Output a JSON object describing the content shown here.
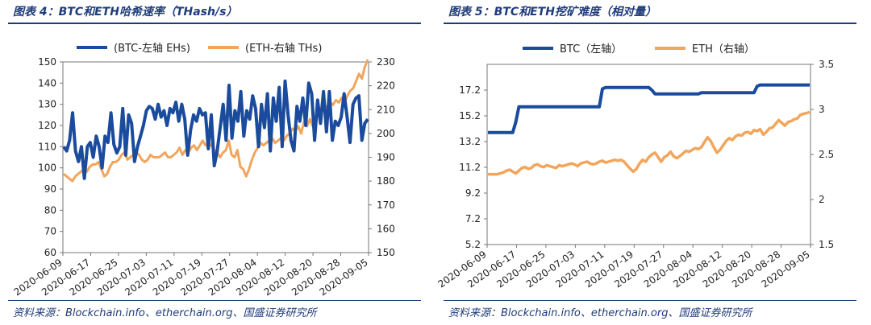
{
  "colors": {
    "btc": "#1a4b9c",
    "eth": "#f2a55c",
    "accent": "#1f3c7a"
  },
  "charts": [
    {
      "title": "图表 4：BTC和ETH哈希速率（THash/s）",
      "source": "资料来源：Blockchain.info、etherchain.org、国盛证券研究所",
      "chart_data": {
        "type": "line",
        "x_tick_labels": [
          "2020-06-09",
          "2020-06-17",
          "2020-06-25",
          "2020-07-03",
          "2020-07-11",
          "2020-07-19",
          "2020-07-27",
          "2020-08-04",
          "2020-08-12",
          "2020-08-20",
          "2020-08-28",
          "2020-09-05"
        ],
        "y_left": {
          "ylim": [
            60,
            150
          ],
          "ticks": [
            60,
            70,
            80,
            90,
            100,
            110,
            120,
            130,
            140,
            150
          ]
        },
        "y_right": {
          "ylim": [
            150,
            230
          ],
          "ticks": [
            150,
            160,
            170,
            180,
            190,
            200,
            210,
            220,
            230
          ]
        },
        "legend_position": "top",
        "series": [
          {
            "name": "(BTC-左轴 EHs)",
            "axis": "left",
            "color": "#1a4b9c",
            "values": [
              110,
              108,
              113,
              126,
              108,
              103,
              110,
              95,
              110,
              112,
              105,
              115,
              110,
              100,
              115,
              112,
              126,
              111,
              107,
              110,
              128,
              106,
              125,
              121,
              103,
              110,
              115,
              120,
              127,
              129,
              128,
              123,
              130,
              124,
              127,
              120,
              128,
              126,
              131,
              122,
              130,
              123,
              106,
              118,
              125,
              122,
              128,
              125,
              126,
              109,
              125,
              101,
              108,
              119,
              130,
              113,
              139,
              114,
              127,
              122,
              136,
              115,
              127,
              123,
              134,
              128,
              110,
              130,
              119,
              135,
              108,
              133,
              122,
              138,
              110,
              141,
              125,
              113,
              108,
              129,
              122,
              133,
              120,
              140,
              135,
              113,
              132,
              121,
              136,
              117,
              136,
              113,
              122,
              120,
              124,
              135,
              124,
              112,
              130,
              133,
              134,
              113,
              121,
              123
            ]
          },
          {
            "name": "(ETH-右轴 THs)",
            "axis": "right",
            "color": "#f2a55c",
            "values": [
              183,
              182,
              181,
              180,
              182,
              183,
              184,
              185,
              184,
              186,
              187,
              187,
              188,
              185,
              182,
              183,
              186,
              188,
              188,
              189,
              191,
              192,
              189,
              190,
              191,
              192,
              191,
              189,
              188,
              189,
              191,
              190,
              190,
              190,
              191,
              192,
              190,
              190,
              191,
              192,
              194,
              191,
              193,
              192,
              194,
              195,
              193,
              195,
              197,
              195,
              196,
              195,
              193,
              192,
              190,
              192,
              193,
              197,
              191,
              190,
              193,
              186,
              185,
              182,
              185,
              189,
              192,
              194,
              196,
              195,
              196,
              197,
              198,
              196,
              197,
              198,
              197,
              199,
              200,
              202,
              201,
              203,
              200,
              205,
              203,
              206,
              203,
              206,
              208,
              210,
              212,
              211,
              213,
              212,
              214,
              213,
              215,
              213,
              216,
              218,
              219,
              222,
              225,
              223,
              228,
              231
            ]
          }
        ]
      }
    },
    {
      "title": "图表 5：BTC和ETH挖矿难度（相对量）",
      "source": "资料来源：Blockchain.info、etherchain.org、国盛证券研究所",
      "chart_data": {
        "type": "line",
        "x_tick_labels": [
          "2020-06-09",
          "2020-06-17",
          "2020-06-25",
          "2020-07-03",
          "2020-07-11",
          "2020-07-19",
          "2020-07-27",
          "2020-08-04",
          "2020-08-12",
          "2020-08-20",
          "2020-08-28",
          "2020-09-05"
        ],
        "y_left": {
          "ylim": [
            5.2,
            19.2
          ],
          "ticks": [
            "5.2",
            "7.2",
            "9.2",
            "11.2",
            "13.2",
            "15.2",
            "17.2"
          ]
        },
        "y_right": {
          "ylim": [
            1.5,
            3.5
          ],
          "ticks": [
            "1.5",
            "2",
            "2.5",
            "3",
            "3.5"
          ]
        },
        "legend_position": "top",
        "series": [
          {
            "name": "BTC（左轴）",
            "axis": "left",
            "color": "#1a4b9c",
            "values": [
              13.9,
              13.9,
              13.9,
              13.9,
              13.9,
              13.9,
              13.9,
              13.9,
              13.9,
              14.7,
              15.9,
              15.9,
              15.9,
              15.9,
              15.9,
              15.9,
              15.9,
              15.9,
              15.9,
              15.9,
              15.9,
              15.9,
              15.9,
              15.9,
              15.9,
              15.9,
              15.9,
              15.9,
              15.9,
              15.9,
              15.9,
              15.9,
              15.9,
              15.9,
              15.9,
              15.9,
              15.9,
              17.3,
              17.4,
              17.4,
              17.4,
              17.4,
              17.4,
              17.4,
              17.4,
              17.4,
              17.4,
              17.4,
              17.4,
              17.4,
              17.4,
              17.4,
              17.4,
              17.2,
              16.9,
              16.9,
              16.9,
              16.9,
              16.9,
              16.9,
              16.9,
              16.9,
              16.9,
              16.9,
              16.9,
              16.9,
              16.9,
              16.9,
              16.9,
              17.0,
              17.0,
              17.0,
              17.0,
              17.0,
              17.0,
              17.0,
              17.0,
              17.0,
              17.0,
              17.0,
              17.0,
              17.0,
              17.0,
              17.0,
              17.0,
              17.0,
              17.0,
              17.5,
              17.6,
              17.6,
              17.6,
              17.6,
              17.6,
              17.6,
              17.6,
              17.6,
              17.6,
              17.6,
              17.6,
              17.6,
              17.6,
              17.6,
              17.6,
              17.6,
              17.6
            ]
          },
          {
            "name": "ETH（右轴）",
            "axis": "right",
            "color": "#f2a55c",
            "values": [
              2.28,
              2.28,
              2.28,
              2.28,
              2.29,
              2.3,
              2.32,
              2.33,
              2.31,
              2.29,
              2.32,
              2.35,
              2.36,
              2.34,
              2.35,
              2.38,
              2.39,
              2.37,
              2.36,
              2.38,
              2.37,
              2.36,
              2.35,
              2.38,
              2.37,
              2.38,
              2.39,
              2.4,
              2.39,
              2.37,
              2.4,
              2.41,
              2.42,
              2.4,
              2.39,
              2.4,
              2.42,
              2.43,
              2.41,
              2.42,
              2.43,
              2.44,
              2.43,
              2.44,
              2.42,
              2.38,
              2.34,
              2.31,
              2.34,
              2.4,
              2.44,
              2.42,
              2.47,
              2.5,
              2.52,
              2.47,
              2.42,
              2.47,
              2.49,
              2.53,
              2.48,
              2.46,
              2.48,
              2.51,
              2.54,
              2.53,
              2.55,
              2.57,
              2.56,
              2.58,
              2.64,
              2.69,
              2.65,
              2.58,
              2.52,
              2.55,
              2.6,
              2.65,
              2.68,
              2.66,
              2.7,
              2.72,
              2.71,
              2.74,
              2.75,
              2.73,
              2.77,
              2.76,
              2.78,
              2.72,
              2.75,
              2.79,
              2.8,
              2.84,
              2.88,
              2.85,
              2.82,
              2.86,
              2.87,
              2.89,
              2.9,
              2.94,
              2.95,
              2.96,
              2.97
            ]
          }
        ]
      }
    }
  ]
}
